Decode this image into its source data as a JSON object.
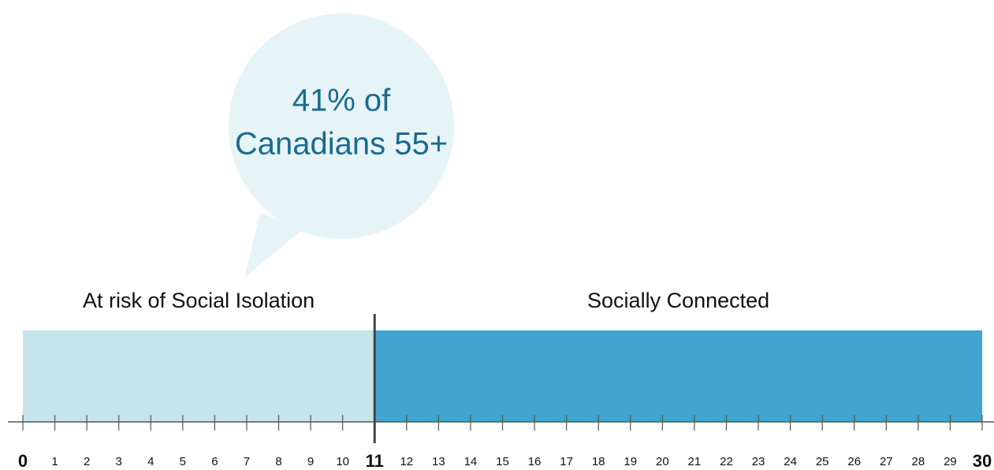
{
  "chart_data": {
    "type": "scale",
    "callout": [
      "41% of",
      "Canadians 55+"
    ],
    "segments": [
      {
        "name": "At risk of Social Isolation",
        "from": 0,
        "to": 11,
        "color": "#c5e5eb"
      },
      {
        "name": "Socially Connected",
        "from": 11,
        "to": 30,
        "color": "#42a5d0"
      }
    ],
    "xlim": [
      0,
      30
    ],
    "xticks": [
      0,
      1,
      2,
      3,
      4,
      5,
      6,
      7,
      8,
      9,
      10,
      11,
      12,
      13,
      14,
      15,
      16,
      17,
      18,
      19,
      20,
      21,
      22,
      23,
      24,
      25,
      26,
      27,
      28,
      29,
      30
    ],
    "bold_ticks": [
      0,
      11,
      30
    ]
  }
}
